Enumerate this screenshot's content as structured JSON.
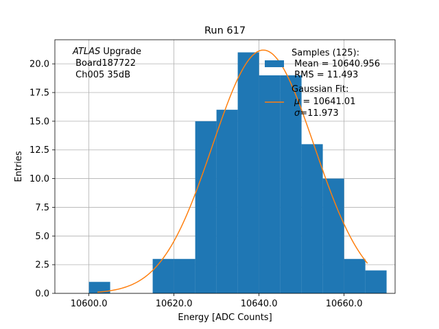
{
  "chart_data": {
    "type": "bar",
    "title": "Run 617",
    "xlabel": "Energy [ADC Counts]",
    "ylabel": "Entries",
    "xlim": [
      10592.0,
      10672.0
    ],
    "ylim": [
      0,
      22.1
    ],
    "xticks": [
      10600.0,
      10620.0,
      10640.0,
      10660.0
    ],
    "xtick_labels": [
      "10600.0",
      "10620.0",
      "10640.0",
      "10660.0"
    ],
    "yticks": [
      0.0,
      2.5,
      5.0,
      7.5,
      10.0,
      12.5,
      15.0,
      17.5,
      20.0
    ],
    "ytick_labels": [
      "0.0",
      "2.5",
      "5.0",
      "7.5",
      "10.0",
      "12.5",
      "15.0",
      "17.5",
      "20.0"
    ],
    "grid": true,
    "bin_edges": [
      10600,
      10605,
      10610,
      10615,
      10620,
      10625,
      10630,
      10635,
      10640,
      10645,
      10650,
      10655,
      10660,
      10665,
      10670
    ],
    "counts": [
      1,
      0,
      0,
      3,
      3,
      15,
      16,
      21,
      19,
      19,
      13,
      10,
      3,
      2
    ],
    "fit": {
      "type": "gaussian",
      "mu": 10641.01,
      "sigma": 11.973,
      "amplitude": 21.2,
      "x_range": [
        10602,
        10665.5
      ]
    },
    "colors": {
      "histogram": "#1f77b4",
      "fit": "#ff7f0e",
      "grid": "#b0b0b0"
    },
    "annotation": {
      "line1_italic": "ATLAS",
      "line1_rest": " Upgrade",
      "line2": " Board187722",
      "line3": " Ch005 35dB"
    },
    "legend": {
      "placement": "top-right",
      "samples_title": "Samples (125):",
      "samples_mean": " Mean = 10640.956",
      "samples_rms": " RMS = 11.493",
      "fit_title": "Gaussian Fit:",
      "fit_mu_symbol": "μ",
      "fit_mu_text": " = 10641.01",
      "fit_sigma_symbol": "σ",
      "fit_sigma_text": "=11.973"
    }
  }
}
